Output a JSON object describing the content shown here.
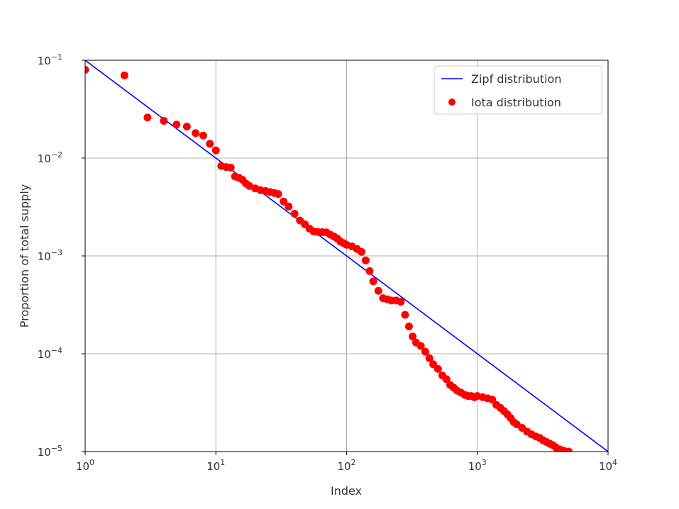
{
  "chart_data": {
    "type": "scatter",
    "title": "",
    "xlabel": "Index",
    "ylabel": "Proportion of total supply",
    "xscale": "log",
    "yscale": "log",
    "xlim": [
      1,
      10000
    ],
    "ylim": [
      1e-05,
      0.1
    ],
    "grid": true,
    "legend_position": "top-right",
    "x_ticks": [
      {
        "value": 1,
        "base": "10",
        "exp": "0"
      },
      {
        "value": 10,
        "base": "10",
        "exp": "1"
      },
      {
        "value": 100,
        "base": "10",
        "exp": "2"
      },
      {
        "value": 1000,
        "base": "10",
        "exp": "3"
      },
      {
        "value": 10000,
        "base": "10",
        "exp": "4"
      }
    ],
    "y_ticks": [
      {
        "value": 1e-05,
        "base": "10",
        "exp": "−5"
      },
      {
        "value": 0.0001,
        "base": "10",
        "exp": "−4"
      },
      {
        "value": 0.001,
        "base": "10",
        "exp": "−3"
      },
      {
        "value": 0.01,
        "base": "10",
        "exp": "−2"
      },
      {
        "value": 0.1,
        "base": "10",
        "exp": "−1"
      }
    ],
    "series": [
      {
        "name": "Zipf distribution",
        "kind": "line",
        "color": "#0000ff",
        "x": [
          1,
          10000
        ],
        "y": [
          0.1,
          1e-05
        ]
      },
      {
        "name": "Iota distribution",
        "kind": "scatter",
        "color": "#ff0000",
        "x": [
          1,
          2,
          3,
          4,
          5,
          6,
          7,
          8,
          9,
          10,
          11,
          12,
          13,
          14,
          15,
          16,
          17,
          18,
          20,
          22,
          24,
          26,
          28,
          30,
          33,
          36,
          40,
          44,
          48,
          52,
          56,
          60,
          65,
          70,
          75,
          80,
          85,
          90,
          95,
          100,
          110,
          120,
          130,
          140,
          150,
          160,
          175,
          190,
          205,
          220,
          240,
          260,
          280,
          300,
          320,
          340,
          370,
          400,
          430,
          460,
          500,
          540,
          580,
          620,
          660,
          700,
          750,
          800,
          850,
          900,
          950,
          1000,
          1100,
          1200,
          1300,
          1400,
          1500,
          1600,
          1700,
          1800,
          1900,
          2000,
          2200,
          2400,
          2600,
          2800,
          3000,
          3200,
          3400,
          3600,
          3800,
          4000,
          4300,
          4600,
          5000
        ],
        "y": [
          0.08,
          0.07,
          0.026,
          0.024,
          0.022,
          0.021,
          0.018,
          0.017,
          0.014,
          0.012,
          0.0083,
          0.0081,
          0.008,
          0.0065,
          0.0063,
          0.006,
          0.0055,
          0.0052,
          0.0049,
          0.0047,
          0.0046,
          0.0045,
          0.0044,
          0.0043,
          0.0036,
          0.0032,
          0.0027,
          0.0023,
          0.0021,
          0.0019,
          0.00178,
          0.00176,
          0.00175,
          0.00174,
          0.00165,
          0.00158,
          0.0015,
          0.0014,
          0.00135,
          0.0013,
          0.00125,
          0.00118,
          0.0011,
          0.0009,
          0.0007,
          0.00055,
          0.00044,
          0.00037,
          0.00036,
          0.00035,
          0.00035,
          0.00034,
          0.00025,
          0.00019,
          0.00015,
          0.00013,
          0.00012,
          0.000105,
          9e-05,
          7.8e-05,
          7e-05,
          6e-05,
          5.5e-05,
          4.8e-05,
          4.5e-05,
          4.2e-05,
          4e-05,
          3.8e-05,
          3.7e-05,
          3.7e-05,
          3.6e-05,
          3.7e-05,
          3.6e-05,
          3.5e-05,
          3.4e-05,
          3e-05,
          2.8e-05,
          2.6e-05,
          2.4e-05,
          2.2e-05,
          2e-05,
          1.9e-05,
          1.75e-05,
          1.6e-05,
          1.5e-05,
          1.43e-05,
          1.38e-05,
          1.3e-05,
          1.25e-05,
          1.2e-05,
          1.16e-05,
          1.1e-05,
          1.05e-05,
          1.02e-05,
          1e-05
        ]
      }
    ]
  }
}
